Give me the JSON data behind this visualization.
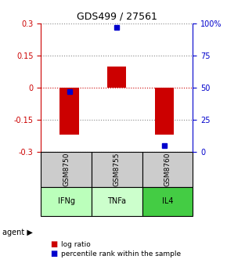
{
  "title": "GDS499 / 27561",
  "samples": [
    "GSM8750",
    "GSM8755",
    "GSM8760"
  ],
  "agents": [
    "IFNg",
    "TNFa",
    "IL4"
  ],
  "log_ratios": [
    -0.22,
    0.1,
    -0.22
  ],
  "percentile_ranks": [
    47,
    97,
    5
  ],
  "left_yticks": [
    -0.3,
    -0.15,
    0,
    0.15,
    0.3
  ],
  "right_ytick_vals": [
    0,
    25,
    50,
    75,
    100
  ],
  "right_ytick_labels": [
    "0",
    "25",
    "50",
    "75",
    "100%"
  ],
  "left_ylim": [
    -0.3,
    0.3
  ],
  "right_ylim": [
    0,
    100
  ],
  "bar_color": "#cc0000",
  "dot_color": "#0000cc",
  "agent_colors": [
    "#bbffbb",
    "#ccffcc",
    "#44cc44"
  ],
  "sample_bg": "#cccccc",
  "legend_bar_label": "log ratio",
  "legend_dot_label": "percentile rank within the sample",
  "bar_width": 0.4
}
